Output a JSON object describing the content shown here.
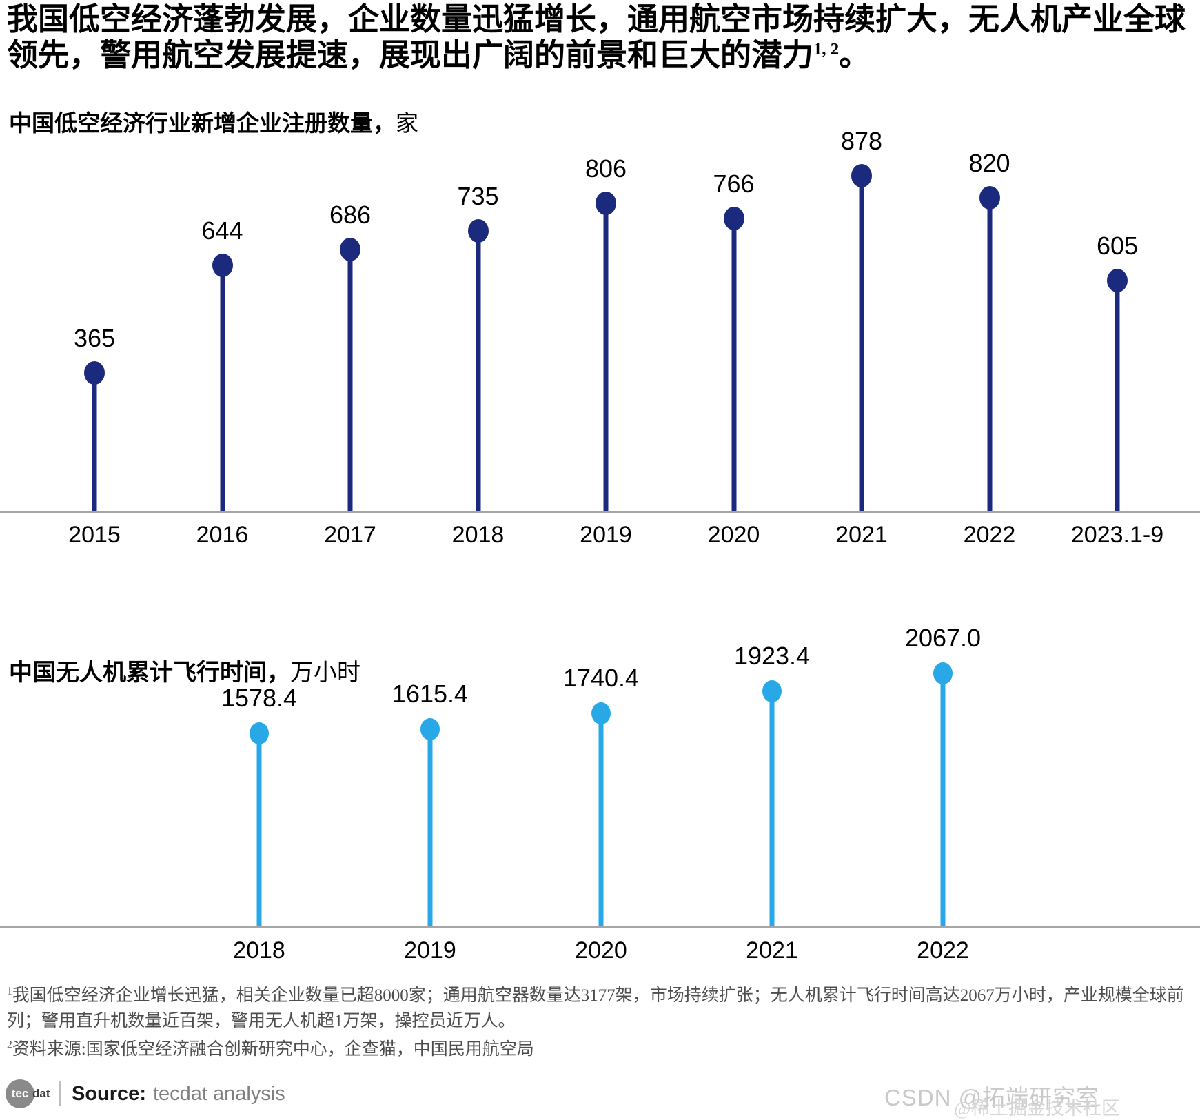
{
  "title": {
    "text": "我国低空经济蓬勃发展，企业数量迅猛增长，通用航空市场持续扩大，无人机产业全球领先，警用航空发展提速，展现出广阔的前景和巨大的潜力",
    "superscript": "1, 2",
    "suffix": "。"
  },
  "chart_data": [
    {
      "type": "lollipop",
      "title": "中国低空经济行业新增企业注册数量",
      "title_separator": "，",
      "unit": "家",
      "categories": [
        "2015",
        "2016",
        "2017",
        "2018",
        "2019",
        "2020",
        "2021",
        "2022",
        "2023.1-9"
      ],
      "values": [
        365,
        644,
        686,
        735,
        806,
        766,
        878,
        820,
        605
      ],
      "labels": [
        "365",
        "644",
        "686",
        "735",
        "806",
        "766",
        "878",
        "820",
        "605"
      ],
      "color": "#1b2a7d",
      "axis_color": "#a6a6a6",
      "ylim": [
        0,
        900
      ],
      "grid": false,
      "legend": false,
      "value_labels": true
    },
    {
      "type": "lollipop",
      "title": "中国无人机累计飞行时间",
      "title_separator": "，",
      "unit": "万小时",
      "categories": [
        "2018",
        "2019",
        "2020",
        "2021",
        "2022"
      ],
      "values": [
        1578.4,
        1615.4,
        1740.4,
        1923.4,
        2067.0
      ],
      "labels": [
        "1578.4",
        "1615.4",
        "1740.4",
        "1923.4",
        "2067.0"
      ],
      "color": "#29a8e8",
      "axis_color": "#a6a6a6",
      "ylim": [
        0,
        2100
      ],
      "grid": false,
      "legend": false,
      "value_labels": true
    }
  ],
  "footnotes": [
    {
      "sup": "1",
      "text": "我国低空经济企业增长迅猛，相关企业数量已超8000家；通用航空器数量达3177架，市场持续扩张；无人机累计飞行时间高达2067万小时，产业规模全球前列；警用直升机数量近百架，警用无人机超1万架，操控员近万人。"
    },
    {
      "sup": "2",
      "text": "资料来源:国家低空经济融合创新研究中心，企查猫，中国民用航空局"
    }
  ],
  "source": {
    "logo_circle_text": "tec",
    "logo_suffix": "dat",
    "label": "Source:",
    "value": "tecdat analysis"
  },
  "watermarks": [
    {
      "text": "CSDN @拓端研究室"
    },
    {
      "text": "@稀土掘金技术社区"
    }
  ]
}
